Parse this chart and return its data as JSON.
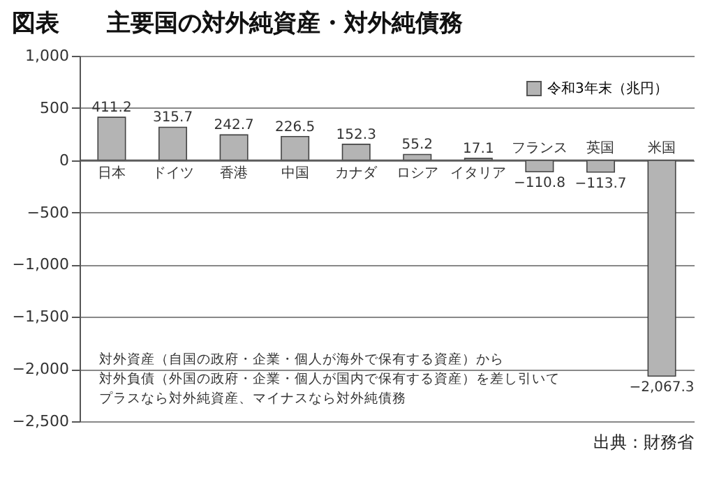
{
  "chart_data": {
    "type": "bar",
    "title": "図表　　主要国の対外純資産・対外純債務",
    "categories": [
      "日本",
      "ドイツ",
      "香港",
      "中国",
      "カナダ",
      "ロシア",
      "イタリア",
      "フランス",
      "英国",
      "米国"
    ],
    "series": [
      {
        "name": "令和3年末（兆円）",
        "color": "#b4b4b4",
        "values": [
          411.2,
          315.7,
          242.7,
          226.5,
          152.3,
          55.2,
          17.1,
          -110.8,
          -113.7,
          -2067.3
        ]
      }
    ],
    "ylim": [
      -2500,
      1000
    ],
    "yticks": [
      {
        "value": -2500,
        "label": "−2,500"
      },
      {
        "value": -2000,
        "label": "−2,000"
      },
      {
        "value": -1500,
        "label": "−1,500"
      },
      {
        "value": -1000,
        "label": "−1,000"
      },
      {
        "value": -500,
        "label": "−500"
      },
      0,
      500,
      {
        "value": 1000,
        "label": "1,000"
      }
    ],
    "grid": "y",
    "legend": "top right",
    "value_labels": [
      "411.2",
      "315.7",
      "242.7",
      "226.5",
      "152.3",
      "55.2",
      "17.1",
      "−110.8",
      "−113.7",
      "−2,067.3"
    ],
    "annotations": [
      "対外資産（自国の政府・企業・個人が海外で保有する資産）から",
      "対外負債（外国の政府・企業・個人が国内で保有する資産）を差し引いて",
      "プラスなら対外純資産、マイナスなら対外純債務",
      "出典：財務省"
    ]
  }
}
